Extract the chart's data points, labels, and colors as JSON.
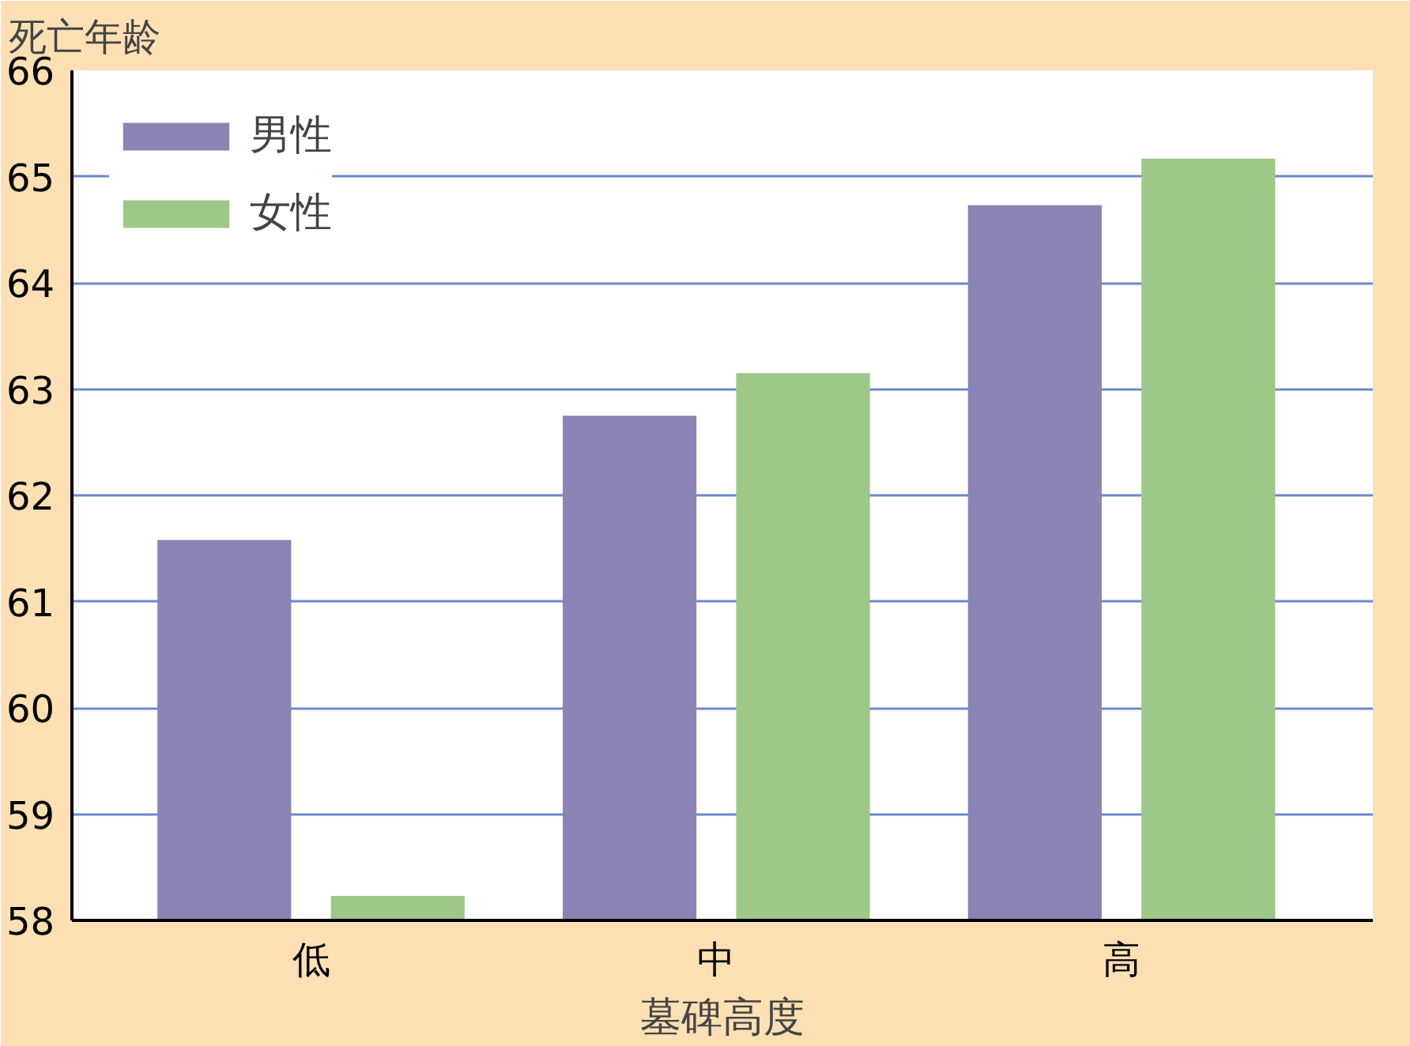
{
  "chart_data": {
    "type": "bar",
    "ylabel": "死亡年龄",
    "xlabel": "墓碑高度",
    "categories": [
      "低",
      "中",
      "高"
    ],
    "series": [
      {
        "name": "男性",
        "color": "#8b84b4",
        "values": [
          61.58,
          62.75,
          64.73
        ]
      },
      {
        "name": "女性",
        "color": "#9dc888",
        "values": [
          58.23,
          63.15,
          65.17
        ]
      }
    ],
    "ylim": [
      58,
      66
    ],
    "yticks": [
      58,
      59,
      60,
      61,
      62,
      63,
      64,
      65,
      66
    ],
    "grid": "y",
    "legend": "top left"
  }
}
